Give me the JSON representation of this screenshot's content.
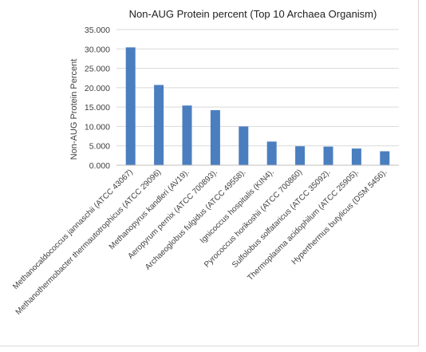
{
  "chart_data": {
    "type": "bar",
    "title": "Non-AUG Protein percent (Top 10 Archaea Organism)",
    "xlabel": "",
    "ylabel": "Non-AUG Protein Percent",
    "ylim": [
      0,
      35
    ],
    "yticks": [
      "0.000",
      "5.000",
      "10.000",
      "15.000",
      "20.000",
      "25.000",
      "30.000",
      "35.000"
    ],
    "grid": true,
    "legend": "none",
    "bar_color": "#4a7ebf",
    "categories": [
      "Methanocaldococcus jannaschii (ATCC 43067)",
      "Methanothermobacter thermautotrophicus (ATCC 29096)",
      "Methanopyrus kandleri (AV19).",
      "Aeropyrum pernix (ATCC 700893).",
      "Archaeoglobus fulgidus (ATCC 49558).",
      "Ignicoccus hospitalis (KIN4).",
      "Pyrococcus horikoshii (ATCC 700860)",
      "Sulfolobus solfataricus (ATCC 35092).",
      "Thermoplasma acidophilum (ATCC 25905).",
      "Hyperthermus butylicus (DSM 5456)."
    ],
    "values": [
      30.4,
      20.7,
      15.4,
      14.2,
      10.0,
      6.1,
      4.9,
      4.8,
      4.3,
      3.6
    ]
  }
}
